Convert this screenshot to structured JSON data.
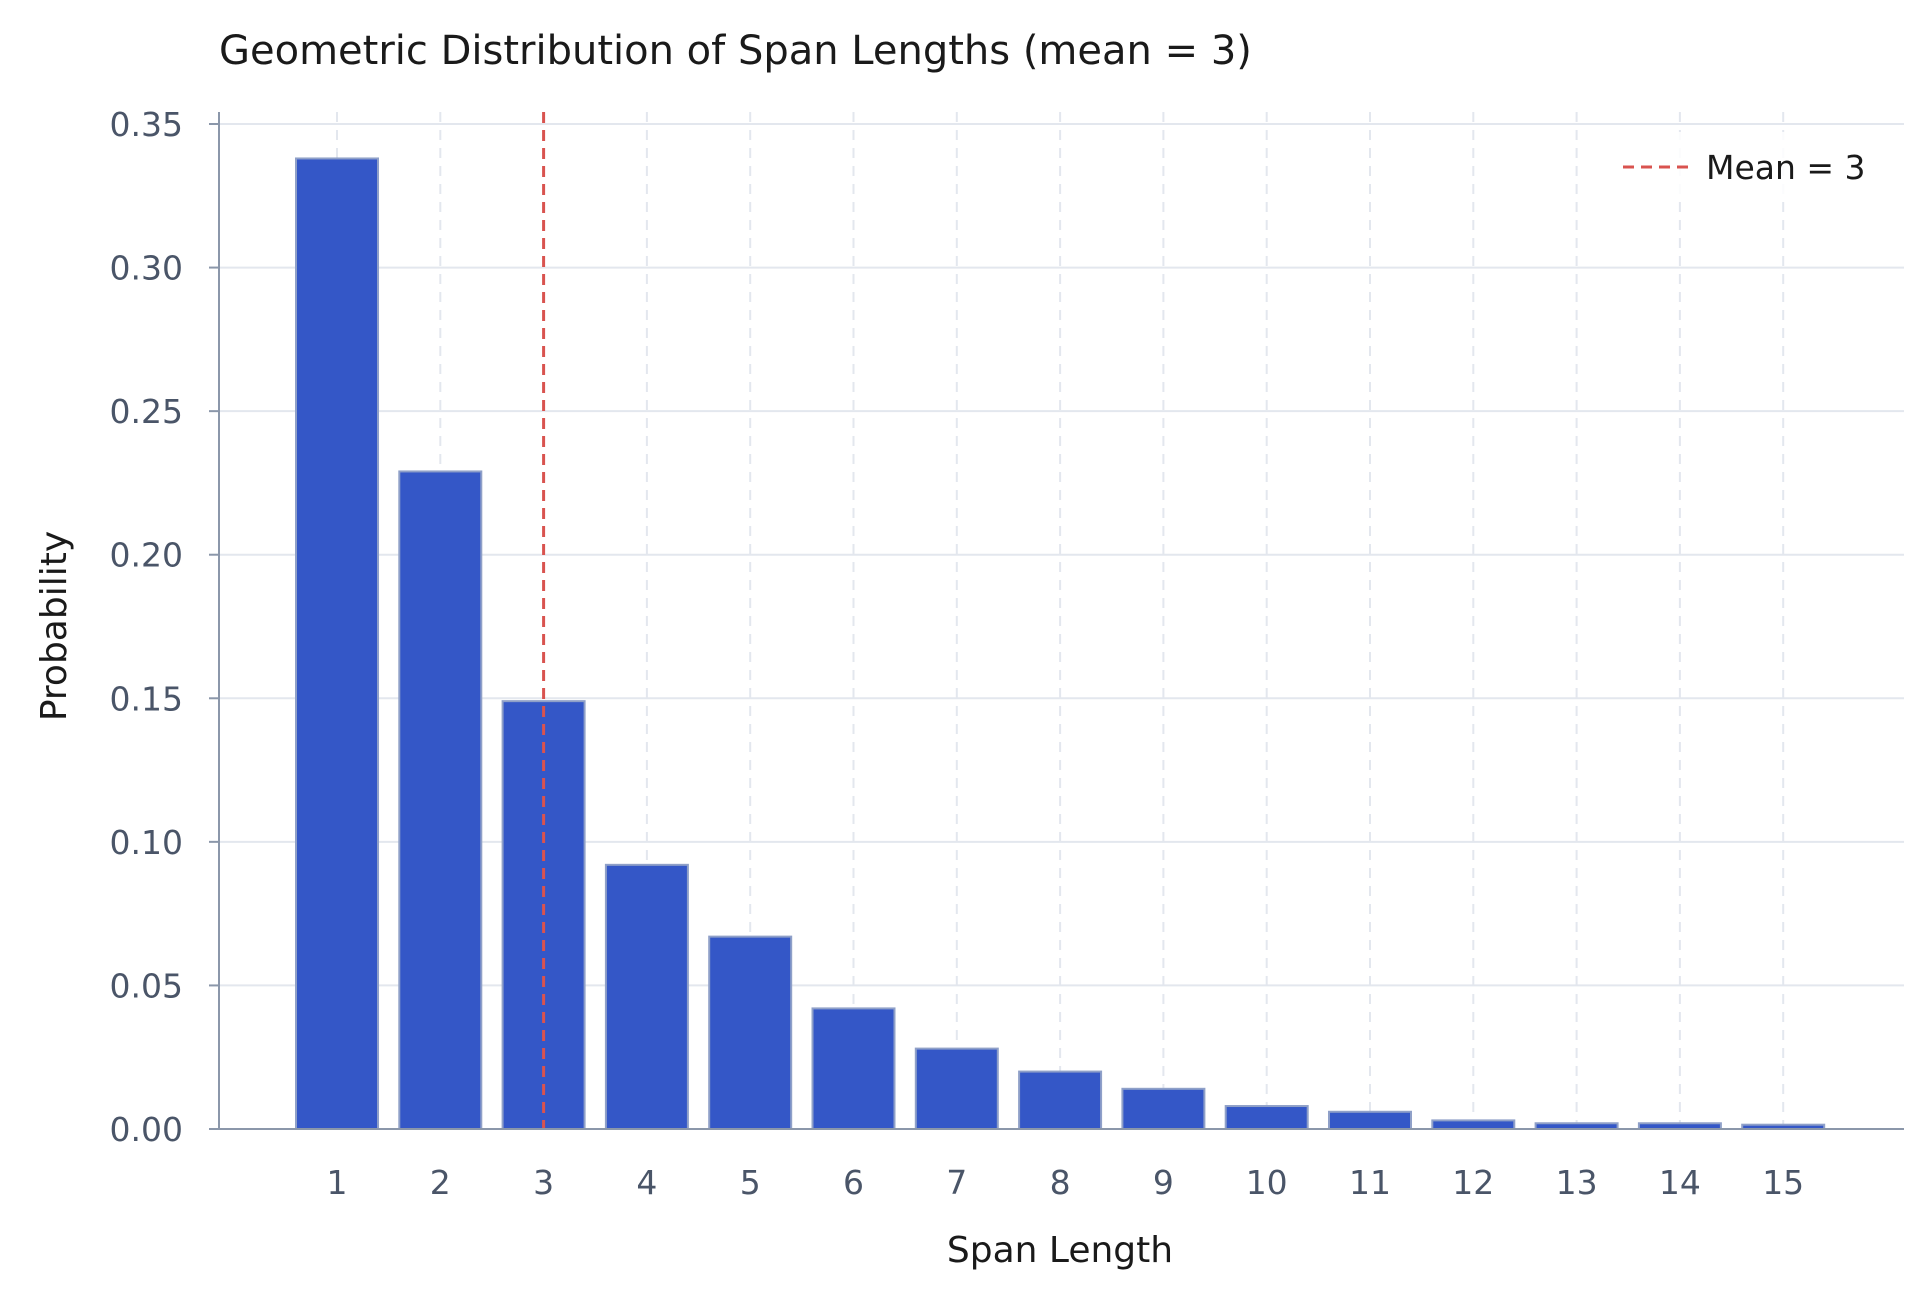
{
  "chart_data": {
    "type": "bar",
    "title": "Geometric Distribution of Span Lengths (mean = 3)",
    "xlabel": "Span Length",
    "ylabel": "Probability",
    "categories": [
      "1",
      "2",
      "3",
      "4",
      "5",
      "6",
      "7",
      "8",
      "9",
      "10",
      "11",
      "12",
      "13",
      "14",
      "15"
    ],
    "values": [
      0.338,
      0.229,
      0.149,
      0.092,
      0.067,
      0.042,
      0.028,
      0.02,
      0.014,
      0.008,
      0.006,
      0.003,
      0.002,
      0.002,
      0.0015
    ],
    "ylim": [
      0,
      0.35
    ],
    "yticks": [
      "0.00",
      "0.05",
      "0.10",
      "0.15",
      "0.20",
      "0.25",
      "0.30",
      "0.35"
    ],
    "grid": true,
    "legend": {
      "position": "top-right",
      "entries": [
        {
          "label": "Mean = 3",
          "style": "dashed-line",
          "color": "#d9534f"
        }
      ]
    },
    "reference_line": {
      "x": 3,
      "label": "Mean = 3",
      "color": "#d9534f",
      "style": "dashed"
    },
    "colors": {
      "bar_fill": "#3457c7",
      "bar_edge": "#8fa0c8",
      "axis": "#8b97aa",
      "grid": "#e3e7ee",
      "tick_text": "#4a5568",
      "label_text": "#1a1a1a"
    }
  }
}
